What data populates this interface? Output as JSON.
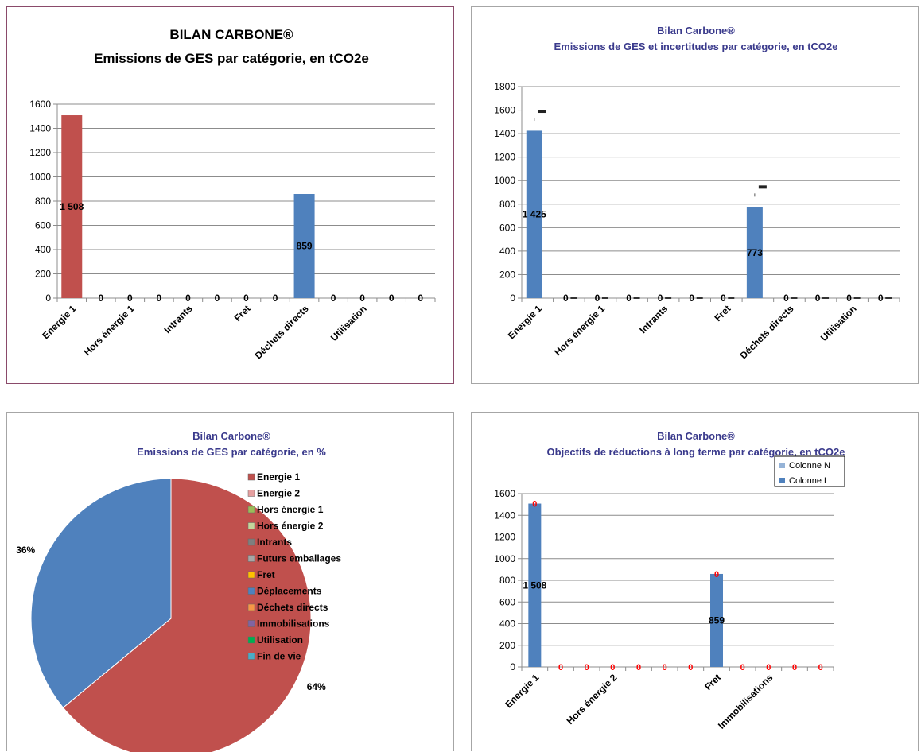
{
  "chart_data": [
    {
      "type": "bar",
      "title": "BILAN CARBONE®",
      "subtitle": "Emissions de GES par catégorie, en tCO2e",
      "ylim": [
        0,
        1600
      ],
      "yticks": [
        "0",
        "200",
        "400",
        "600",
        "800",
        "1000",
        "1200",
        "1400",
        "1600"
      ],
      "xlabels": [
        "Energie 1",
        "Hors énergie 1",
        "Intrants",
        "Fret",
        "Déchets directs",
        "Utilisation"
      ],
      "values": [
        1508,
        0,
        0,
        0,
        0,
        0,
        0,
        0,
        859,
        0,
        0,
        0,
        0
      ],
      "value_labels": [
        "1 508",
        "0",
        "0",
        "0",
        "0",
        "0",
        "0",
        "0",
        "859",
        "0",
        "0",
        "0",
        "0"
      ],
      "colors": [
        "#c0504d",
        "#c0504d",
        "#c0504d",
        "#c0504d",
        "#c0504d",
        "#c0504d",
        "#c0504d",
        "#c0504d",
        "#4f81bd",
        "#4f81bd",
        "#4f81bd",
        "#4f81bd",
        "#4f81bd"
      ],
      "grid": true
    },
    {
      "type": "bar",
      "title": "Bilan Carbone®",
      "subtitle": "Emissions de GES et incertitudes par catégorie, en tCO2e",
      "ylim": [
        0,
        1800
      ],
      "yticks": [
        "0",
        "200",
        "400",
        "600",
        "800",
        "1000",
        "1200",
        "1400",
        "1600",
        "1800"
      ],
      "xlabels": [
        "Energie 1",
        "Hors énergie 1",
        "Intrants",
        "Fret",
        "Déchets directs",
        "Utilisation"
      ],
      "values": [
        1425,
        0,
        0,
        0,
        0,
        0,
        0,
        773,
        0,
        0,
        0,
        0
      ],
      "value_labels": [
        "1 425",
        "0",
        "0",
        "0",
        "0",
        "0",
        "0",
        "773",
        "0",
        "0",
        "0",
        "0"
      ],
      "uncertainty_high": [
        1590,
        0,
        0,
        0,
        0,
        0,
        0,
        945,
        0,
        0,
        0,
        0
      ],
      "color": "#4f81bd",
      "grid": true
    },
    {
      "type": "pie",
      "title": "Bilan Carbone®",
      "subtitle": "Emissions de GES par catégorie, en %",
      "slices": [
        {
          "label": "Energie 1",
          "value": 64,
          "text": "64%",
          "color": "#c0504d"
        },
        {
          "label": "Déplacements",
          "value": 36,
          "text": "36%",
          "color": "#4f81bd"
        }
      ],
      "legend": [
        {
          "label": "Energie 1",
          "color": "#c0504d"
        },
        {
          "label": "Energie 2",
          "color": "#e6a0a0"
        },
        {
          "label": "Hors énergie 1",
          "color": "#9bbb59"
        },
        {
          "label": "Hors énergie 2",
          "color": "#c3d69b"
        },
        {
          "label": "Intrants",
          "color": "#7f7f7f"
        },
        {
          "label": "Futurs emballages",
          "color": "#a6a6a6"
        },
        {
          "label": "Fret",
          "color": "#ffc000"
        },
        {
          "label": "Déplacements",
          "color": "#4f81bd"
        },
        {
          "label": "Déchets directs",
          "color": "#f79646"
        },
        {
          "label": "Immobilisations",
          "color": "#8064a2"
        },
        {
          "label": "Utilisation",
          "color": "#00b050"
        },
        {
          "label": "Fin de vie",
          "color": "#4bacc6"
        }
      ],
      "legend_position": "right"
    },
    {
      "type": "bar",
      "title": "Bilan Carbone®",
      "subtitle": "Objectifs de réductions à long terme par catégorie, en tCO2e",
      "ylim": [
        0,
        1600
      ],
      "yticks": [
        "0",
        "200",
        "400",
        "600",
        "800",
        "1000",
        "1200",
        "1400",
        "1600"
      ],
      "xlabels": [
        "Energie 1",
        "Hors énergie 2",
        "Fret",
        "Immobilisations"
      ],
      "series": [
        {
          "name": "Colonne N",
          "color": "#95b3d7",
          "values": [
            0,
            0,
            0,
            0,
            0,
            0,
            0,
            0,
            0,
            0,
            0,
            0
          ],
          "value_labels": [
            "0",
            "0",
            "0",
            "0",
            "0",
            "0",
            "0",
            "0",
            "0",
            "0",
            "0",
            "0"
          ]
        },
        {
          "name": "Colonne L",
          "color": "#4f81bd",
          "values": [
            1508,
            0,
            0,
            0,
            0,
            0,
            0,
            859,
            0,
            0,
            0,
            0
          ],
          "value_labels": [
            "1 508",
            "",
            "",
            "",
            "",
            "",
            "",
            "859",
            "",
            "",
            "",
            ""
          ]
        }
      ],
      "legend_position": "top-right",
      "grid": true
    }
  ]
}
